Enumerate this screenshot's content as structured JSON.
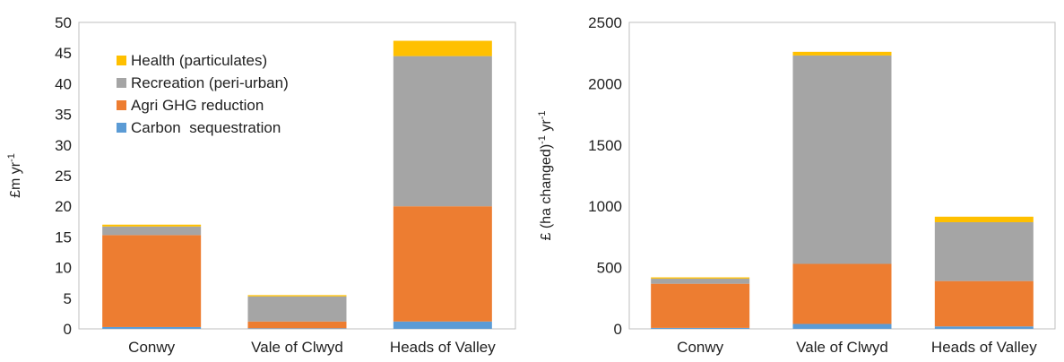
{
  "chart_data": [
    {
      "type": "bar",
      "stacked": true,
      "categories": [
        "Conwy",
        "Vale of Clwyd",
        "Heads of Valley"
      ],
      "ylabel": "£m yr",
      "ylabel_sup": "-1",
      "ylim": [
        0,
        50
      ],
      "yticks": [
        0,
        5,
        10,
        15,
        20,
        25,
        30,
        35,
        40,
        45,
        50
      ],
      "grid": false,
      "legend_position": "top-left",
      "series": [
        {
          "name": "Carbon  sequestration",
          "color": "#5B9BD5",
          "values": [
            0.3,
            0.1,
            1.2
          ]
        },
        {
          "name": "Agri GHG reduction",
          "color": "#ED7D31",
          "values": [
            15.0,
            1.1,
            18.8
          ]
        },
        {
          "name": "Recreation (peri-urban)",
          "color": "#A5A5A5",
          "values": [
            1.4,
            4.1,
            24.5
          ]
        },
        {
          "name": "Health (particulates)",
          "color": "#FFC000",
          "values": [
            0.3,
            0.2,
            2.5
          ]
        }
      ]
    },
    {
      "type": "bar",
      "stacked": true,
      "categories": [
        "Conwy",
        "Vale of Clwyd",
        "Heads of Valley"
      ],
      "ylabel_parts": [
        "£ (ha changed)",
        "-1",
        " yr",
        "-1"
      ],
      "ylim": [
        0,
        2500
      ],
      "yticks": [
        0,
        500,
        1000,
        1500,
        2000,
        2500
      ],
      "grid": false,
      "series": [
        {
          "name": "Carbon  sequestration",
          "color": "#5B9BD5",
          "values": [
            8,
            40,
            20
          ]
        },
        {
          "name": "Agri GHG reduction",
          "color": "#ED7D31",
          "values": [
            360,
            490,
            370
          ]
        },
        {
          "name": "Recreation (peri-urban)",
          "color": "#A5A5A5",
          "values": [
            42,
            1700,
            480
          ]
        },
        {
          "name": "Health (particulates)",
          "color": "#FFC000",
          "values": [
            10,
            30,
            45
          ]
        }
      ]
    }
  ]
}
